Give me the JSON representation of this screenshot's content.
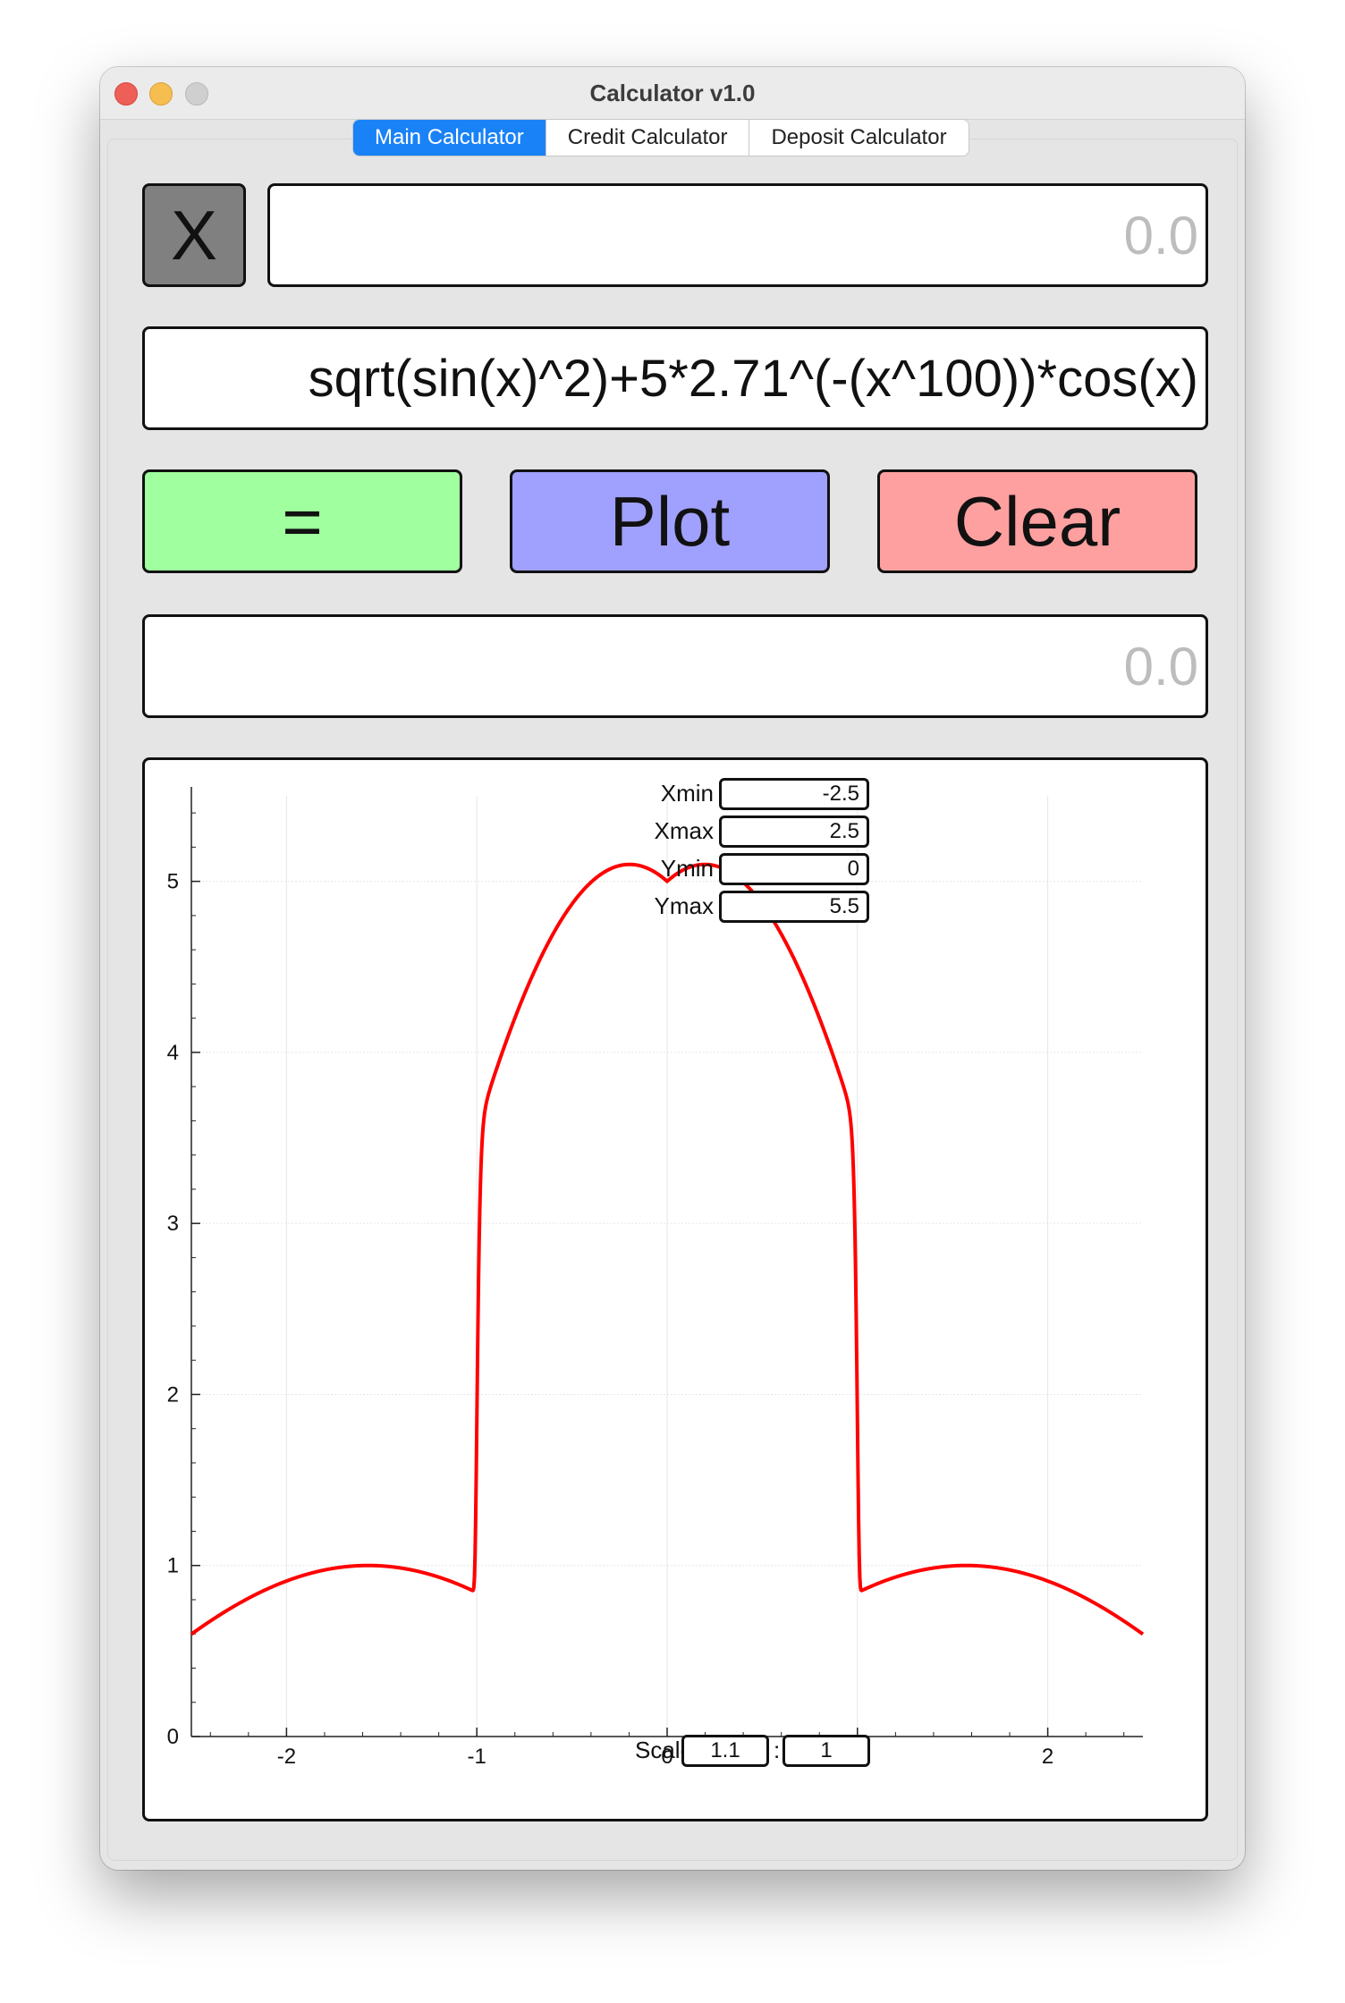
{
  "window": {
    "title": "Calculator v1.0"
  },
  "tabs": [
    {
      "label": "Main Calculator",
      "active": true
    },
    {
      "label": "Credit Calculator",
      "active": false
    },
    {
      "label": "Deposit Calculator",
      "active": false
    }
  ],
  "calculator": {
    "x_button_label": "X",
    "x_value": "0.0",
    "expression": "sqrt(sin(x)^2)+5*2.71^(-(x^100))*cos(x)",
    "equals_label": "=",
    "plot_label": "Plot",
    "clear_label": "Clear",
    "result": "0.0"
  },
  "colors": {
    "equals_bg": "#a0ff9e",
    "plot_bg": "#a0a0ff",
    "clear_bg": "#ffa0a0",
    "x_button_bg": "#808080",
    "active_tab": "#1a82f7",
    "curve": "#ff0000"
  },
  "plot_controls": {
    "xmin_label": "Xmin",
    "xmin_value": "-2.5",
    "xmax_label": "Xmax",
    "xmax_value": "2.5",
    "ymin_label": "Ymin",
    "ymin_value": "0",
    "ymax_label": "Ymax",
    "ymax_value": "5.5",
    "scale_label": "Scale",
    "scale_x": "1.1",
    "scale_sep": ":",
    "scale_y": "1"
  },
  "chart_data": {
    "type": "line",
    "function": "sqrt(sin(x)^2)+5*2.71^(-(x^100))*cos(x)",
    "xlim": [
      -2.5,
      2.5
    ],
    "ylim": [
      0,
      5.5
    ],
    "x_ticks": [
      "-2",
      "-1",
      "0",
      "1",
      "2"
    ],
    "y_ticks": [
      "0",
      "1",
      "2",
      "3",
      "4",
      "5"
    ],
    "grid": true,
    "series": [
      {
        "color": "#ff0000"
      }
    ]
  }
}
